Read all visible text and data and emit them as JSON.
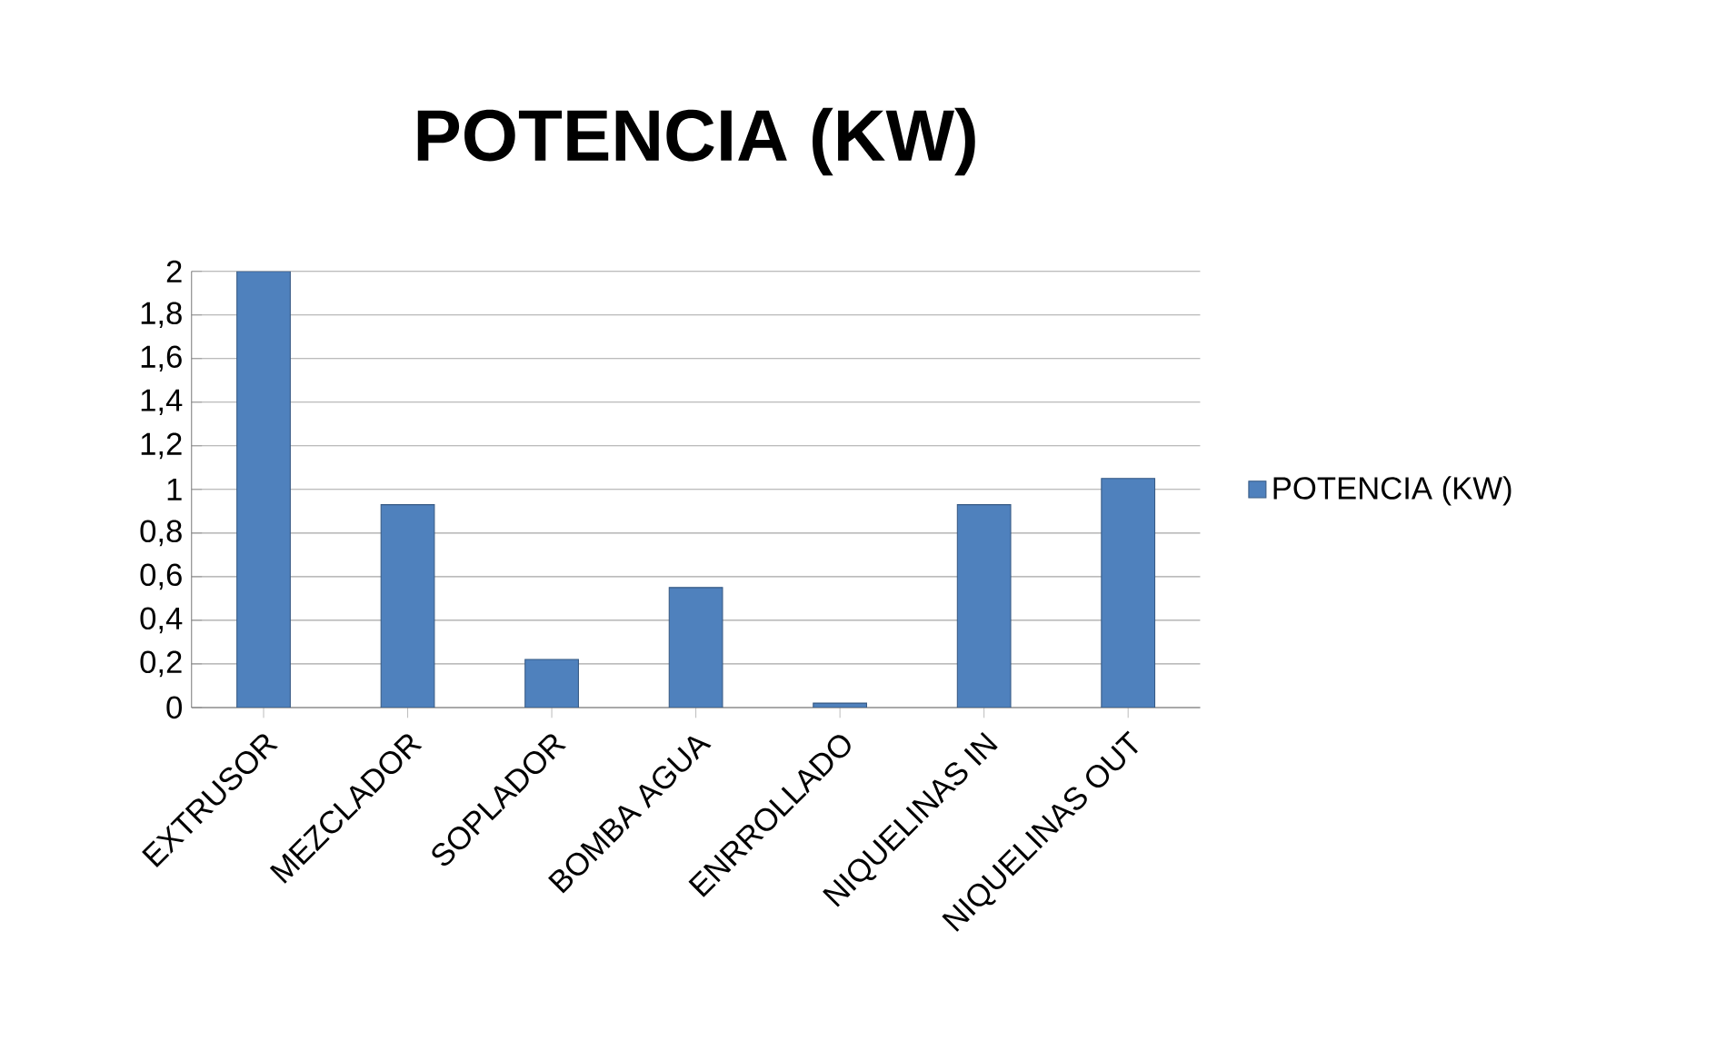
{
  "chart_data": {
    "type": "bar",
    "title": "POTENCIA (KW)",
    "categories": [
      "EXTRUSOR",
      "MEZCLADOR",
      "SOPLADOR",
      "BOMBA AGUA",
      "ENRROLLADO",
      "NIQUELINAS IN",
      "NIQUELINAS OUT"
    ],
    "series": [
      {
        "name": "POTENCIA (KW)",
        "color": "#4f81bd",
        "values": [
          2,
          0.93,
          0.22,
          0.55,
          0.02,
          0.93,
          1.05
        ]
      }
    ],
    "ylim": [
      0,
      2
    ],
    "yticks": [
      {
        "value": 0,
        "label": "0"
      },
      {
        "value": 0.2,
        "label": "0,2"
      },
      {
        "value": 0.4,
        "label": "0,4"
      },
      {
        "value": 0.6,
        "label": "0,6"
      },
      {
        "value": 0.8,
        "label": "0,8"
      },
      {
        "value": 1,
        "label": "1"
      },
      {
        "value": 1.2,
        "label": "1,2"
      },
      {
        "value": 1.4,
        "label": "1,4"
      },
      {
        "value": 1.6,
        "label": "1,6"
      },
      {
        "value": 1.8,
        "label": "1,8"
      },
      {
        "value": 2,
        "label": "2"
      }
    ],
    "grid": "y",
    "legend": "right"
  }
}
